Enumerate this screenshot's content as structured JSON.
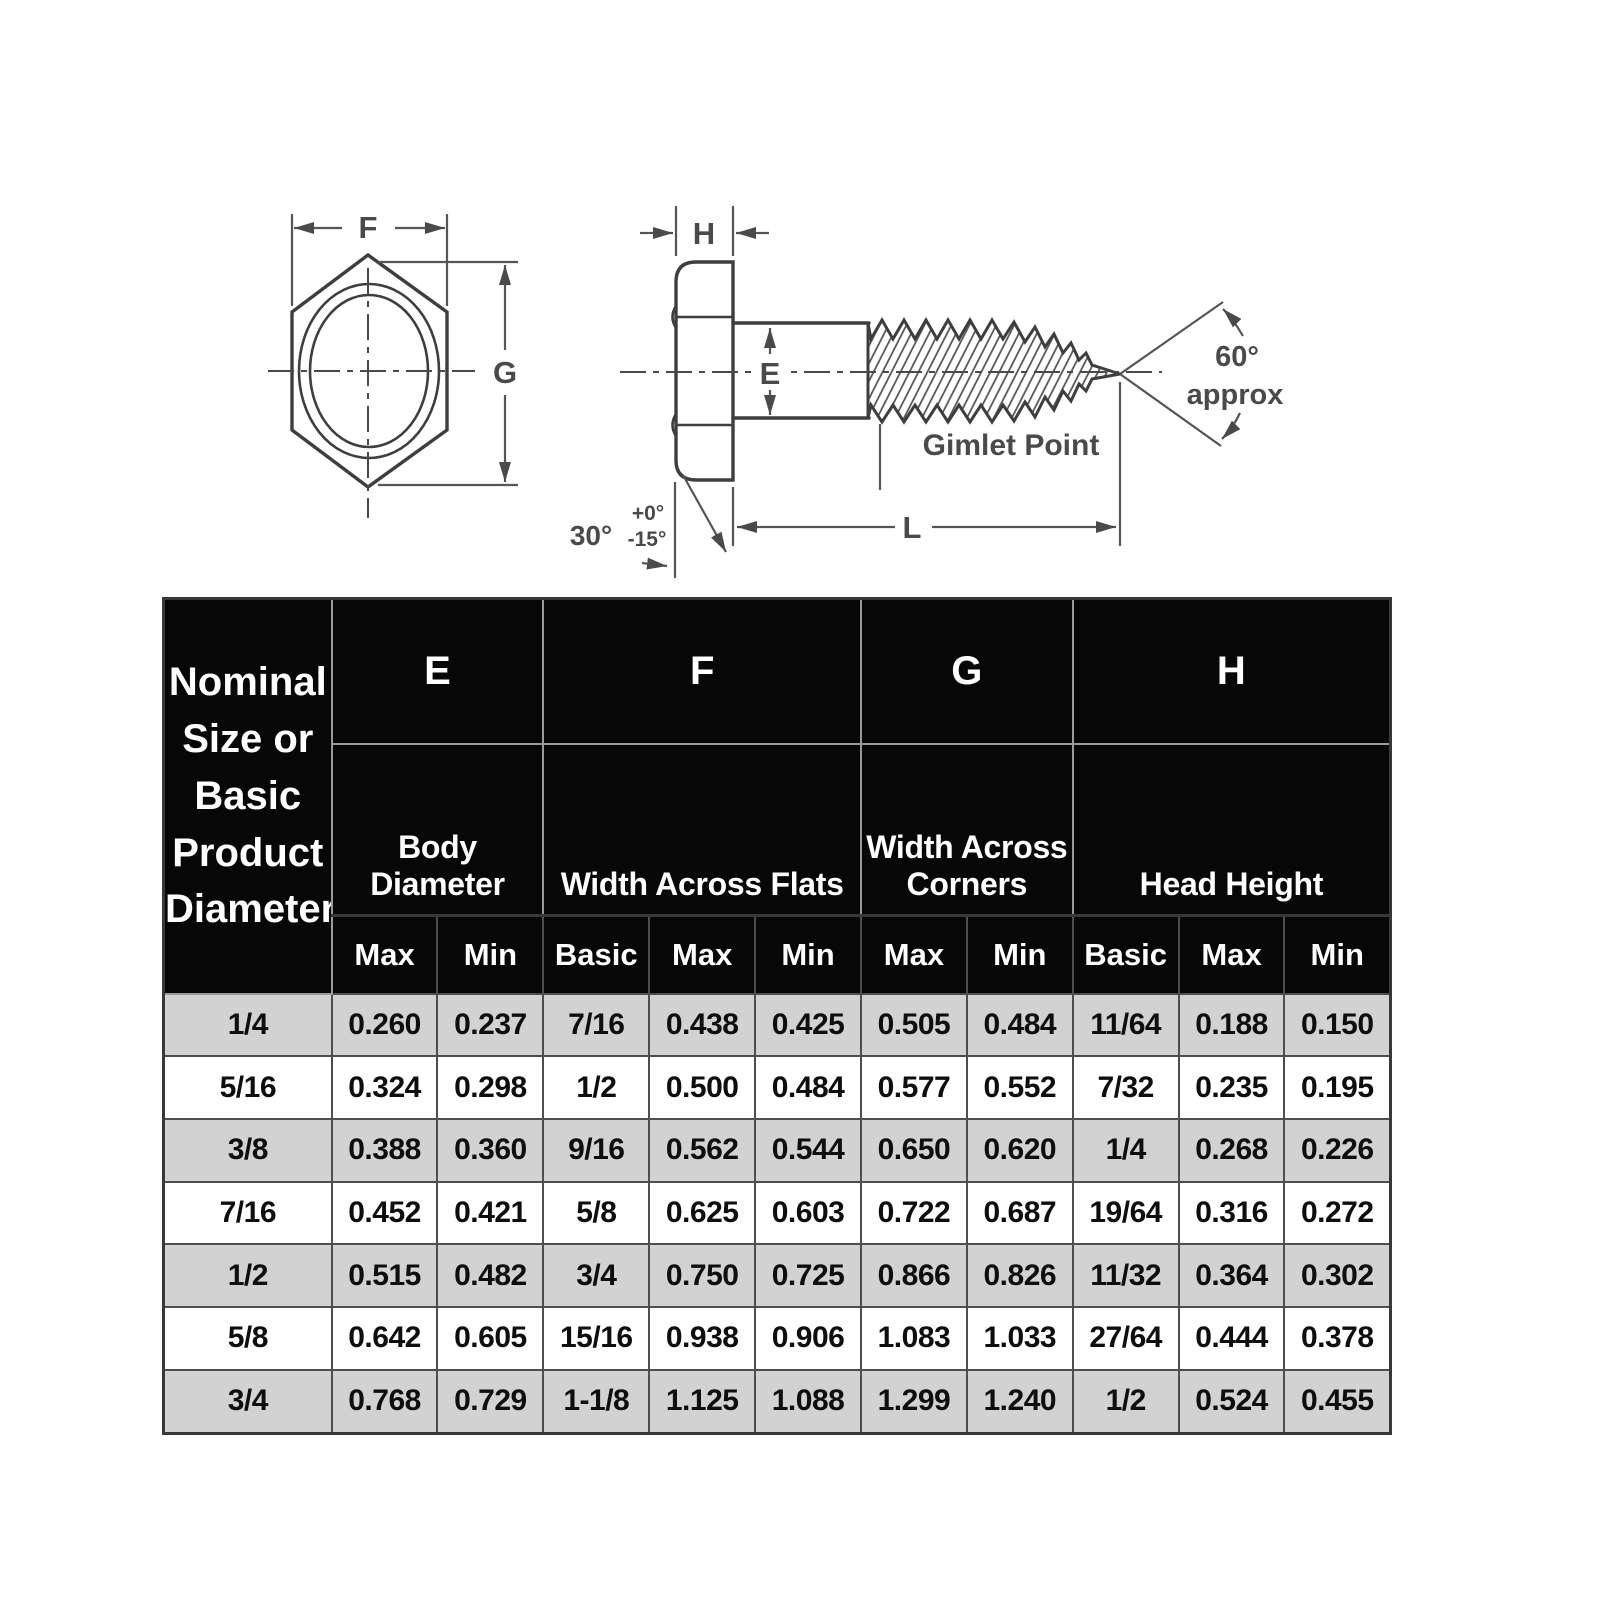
{
  "diagram": {
    "front_view": {
      "width_across_flats": "F",
      "width_across_corners": "G"
    },
    "side_view": {
      "head_height": "H",
      "body_diameter": "E",
      "overall_length": "L",
      "point_angle": "60°",
      "point_angle_qualifier": "approx",
      "point_label": "Gimlet Point",
      "underhead_angle": "30°",
      "underhead_angle_tol_plus": "+0°",
      "underhead_angle_tol_minus": "-15°"
    }
  },
  "table": {
    "row_header": "Nominal Size or Basic Product Diameter",
    "groups": [
      {
        "letter": "E",
        "name": "Body Diameter"
      },
      {
        "letter": "F",
        "name": "Width Across Flats"
      },
      {
        "letter": "G",
        "name": "Width Across Corners"
      },
      {
        "letter": "H",
        "name": "Head Height"
      }
    ],
    "subheaders": [
      "Max",
      "Min",
      "Basic",
      "Max",
      "Min",
      "Max",
      "Min",
      "Basic",
      "Max",
      "Min"
    ],
    "rows": [
      [
        "1/4",
        "0.260",
        "0.237",
        "7/16",
        "0.438",
        "0.425",
        "0.505",
        "0.484",
        "11/64",
        "0.188",
        "0.150"
      ],
      [
        "5/16",
        "0.324",
        "0.298",
        "1/2",
        "0.500",
        "0.484",
        "0.577",
        "0.552",
        "7/32",
        "0.235",
        "0.195"
      ],
      [
        "3/8",
        "0.388",
        "0.360",
        "9/16",
        "0.562",
        "0.544",
        "0.650",
        "0.620",
        "1/4",
        "0.268",
        "0.226"
      ],
      [
        "7/16",
        "0.452",
        "0.421",
        "5/8",
        "0.625",
        "0.603",
        "0.722",
        "0.687",
        "19/64",
        "0.316",
        "0.272"
      ],
      [
        "1/2",
        "0.515",
        "0.482",
        "3/4",
        "0.750",
        "0.725",
        "0.866",
        "0.826",
        "11/32",
        "0.364",
        "0.302"
      ],
      [
        "5/8",
        "0.642",
        "0.605",
        "15/16",
        "0.938",
        "0.906",
        "1.083",
        "1.033",
        "27/64",
        "0.444",
        "0.378"
      ],
      [
        "3/4",
        "0.768",
        "0.729",
        "1-1/8",
        "1.125",
        "1.088",
        "1.299",
        "1.240",
        "1/2",
        "0.524",
        "0.455"
      ]
    ],
    "palette": {
      "header_bg": "#070707",
      "header_text": "#ffffff",
      "subheader_text": "#ed1c1c",
      "alt_row_bg": "#d2d2d2",
      "grid_line": "#4e4e4e"
    }
  }
}
